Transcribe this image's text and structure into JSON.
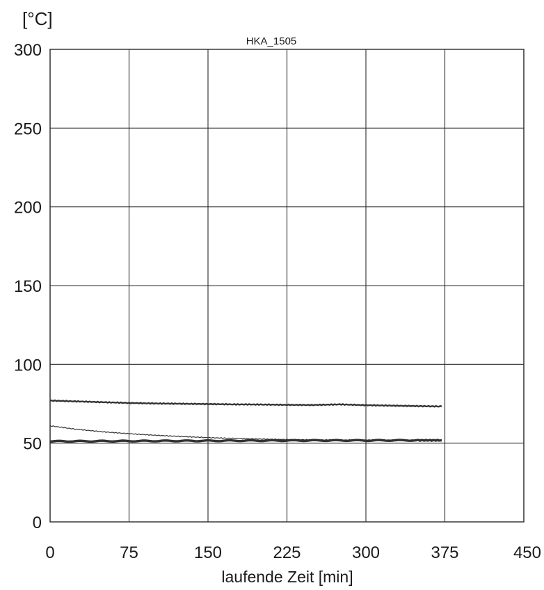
{
  "chart_data": {
    "type": "line",
    "title": "HKA_1505",
    "ylabel": "[°C]",
    "xlabel": "laufende Zeit [min]",
    "xlim": [
      0,
      450
    ],
    "ylim": [
      0,
      300
    ],
    "x_ticks": [
      "0",
      "75",
      "150",
      "225",
      "300",
      "375",
      "450"
    ],
    "y_ticks": [
      "0",
      "50",
      "100",
      "150",
      "200",
      "250",
      "300"
    ],
    "grid": true,
    "series": [
      {
        "color": "#333333",
        "line_weight": "thick",
        "x": [
          0,
          25,
          50,
          75,
          100,
          125,
          150,
          175,
          200,
          225,
          250,
          275,
          300,
          325,
          350,
          372
        ],
        "y": [
          77,
          76.5,
          76,
          75.5,
          75.2,
          75,
          74.8,
          74.6,
          74.5,
          74.3,
          74.2,
          74.6,
          74.1,
          73.8,
          73.5,
          73.3
        ]
      },
      {
        "color": "#333333",
        "line_weight": "thin",
        "x": [
          0,
          25,
          50,
          75,
          100,
          125,
          150,
          175,
          200,
          225,
          250,
          275,
          300,
          325,
          350,
          372
        ],
        "y": [
          61,
          58.8,
          57.2,
          56,
          55,
          54.2,
          53.5,
          53,
          52.6,
          52.3,
          52.1,
          52,
          52,
          52,
          52,
          52
        ]
      },
      {
        "color": "#333333",
        "line_weight": "heavy",
        "x": [
          0,
          50,
          100,
          150,
          200,
          250,
          300,
          350,
          372
        ],
        "y": [
          51.2,
          51.3,
          51.4,
          51.5,
          51.6,
          51.7,
          51.7,
          51.8,
          51.8
        ]
      }
    ]
  }
}
